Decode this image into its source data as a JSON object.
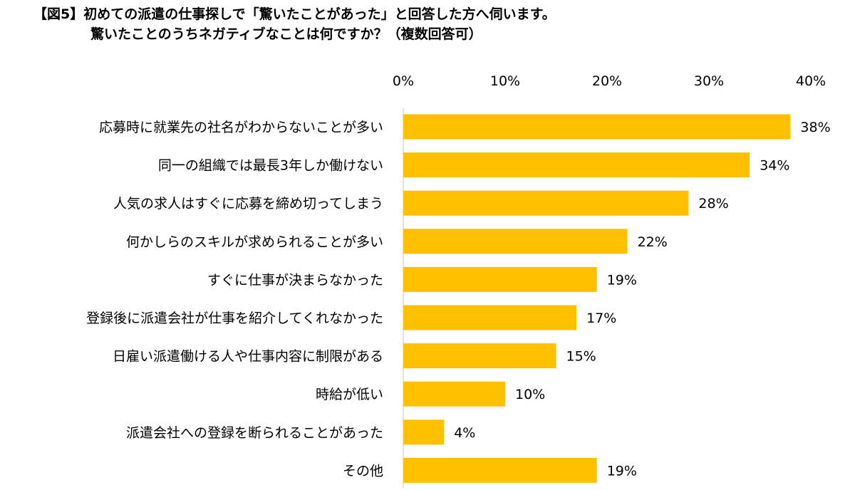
{
  "title_line1": "【図5】初めての派遣の仕事探しで「驚いたことがあった」と回答した方へ伺います。",
  "title_line2": "驚いたことのうちネガティブなことは何ですか？（複数回答可）",
  "chart_data": {
    "type": "bar",
    "orientation": "horizontal",
    "xaxis_position": "top",
    "xlim": [
      0,
      40
    ],
    "ticks": [
      "0%",
      "10%",
      "20%",
      "30%",
      "40%"
    ],
    "tick_values": [
      0,
      10,
      20,
      30,
      40
    ],
    "bar_color": "#FFC000",
    "grid": false,
    "categories": [
      "応募時に就業先の社名がわからないことが多い",
      "同一の組織では最長3年しか働けない",
      "人気の求人はすぐに応募を締め切ってしまう",
      "何かしらのスキルが求められることが多い",
      "すぐに仕事が決まらなかった",
      "登録後に派遣会社が仕事を紹介してくれなかった",
      "日雇い派遣働ける人や仕事内容に制限がある",
      "時給が低い",
      "派遣会社への登録を断られることがあった",
      "その他"
    ],
    "values": [
      38,
      34,
      28,
      22,
      19,
      17,
      15,
      10,
      4,
      19
    ],
    "labels": [
      "38%",
      "34%",
      "28%",
      "22%",
      "19%",
      "17%",
      "15%",
      "10%",
      "4%",
      "19%"
    ]
  }
}
